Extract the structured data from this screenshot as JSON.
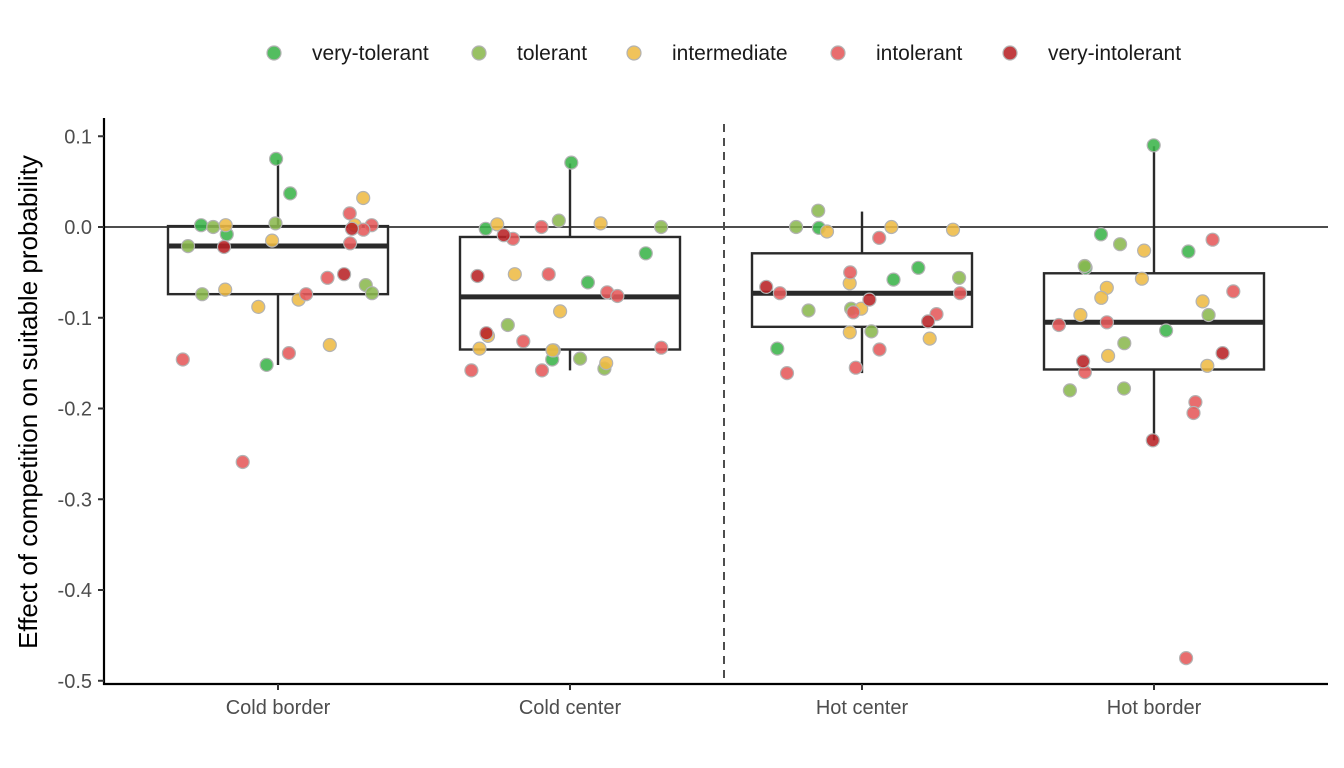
{
  "chart_data": {
    "type": "scatter",
    "subtype": "boxplot-with-jittered-points",
    "title": "",
    "xlabel": "",
    "ylabel": "Effect of competition on suitable probability",
    "ylim": [
      -0.5,
      0.12
    ],
    "yticks": [
      0.1,
      0.0,
      -0.1,
      -0.2,
      -0.3,
      -0.4,
      -0.5
    ],
    "ytick_labels": [
      "0.1",
      "0.0",
      "-0.1",
      "-0.2",
      "-0.3",
      "-0.4",
      "-0.5"
    ],
    "categories": [
      "Cold border",
      "Cold center",
      "Hot center",
      "Hot border"
    ],
    "grid": false,
    "legend_position": "top",
    "reference_line_y": 0.0,
    "divider_between": [
      "Cold center",
      "Hot center"
    ],
    "boxes": [
      {
        "category": "Cold border",
        "whisker_low": -0.152,
        "q1": -0.074,
        "median": -0.021,
        "q3": 0.001,
        "whisker_high": 0.074
      },
      {
        "category": "Cold center",
        "whisker_low": -0.158,
        "q1": -0.135,
        "median": -0.077,
        "q3": -0.011,
        "whisker_high": 0.07
      },
      {
        "category": "Hot center",
        "whisker_low": -0.161,
        "q1": -0.11,
        "median": -0.073,
        "q3": -0.029,
        "whisker_high": 0.017
      },
      {
        "category": "Hot border",
        "whisker_low": -0.235,
        "q1": -0.157,
        "median": -0.105,
        "q3": -0.051,
        "whisker_high": 0.089
      }
    ],
    "series": [
      {
        "name": "very-tolerant",
        "color": "#3bb44a",
        "points": [
          [
            "Cold border",
            0.075
          ],
          [
            "Cold border",
            0.037
          ],
          [
            "Cold border",
            0.002
          ],
          [
            "Cold border",
            -0.008
          ],
          [
            "Cold border",
            -0.152
          ],
          [
            "Cold center",
            0.071
          ],
          [
            "Cold center",
            -0.002
          ],
          [
            "Cold center",
            -0.029
          ],
          [
            "Cold center",
            -0.061
          ],
          [
            "Cold center",
            -0.146
          ],
          [
            "Hot center",
            -0.001
          ],
          [
            "Hot center",
            -0.045
          ],
          [
            "Hot center",
            -0.058
          ],
          [
            "Hot center",
            -0.134
          ],
          [
            "Hot border",
            0.09
          ],
          [
            "Hot border",
            -0.008
          ],
          [
            "Hot border",
            -0.027
          ],
          [
            "Hot border",
            -0.045
          ],
          [
            "Hot border",
            -0.114
          ]
        ]
      },
      {
        "name": "tolerant",
        "color": "#8bb84f",
        "points": [
          [
            "Cold border",
            0.004
          ],
          [
            "Cold border",
            0.0
          ],
          [
            "Cold border",
            -0.021
          ],
          [
            "Cold border",
            -0.064
          ],
          [
            "Cold border",
            -0.073
          ],
          [
            "Cold border",
            -0.074
          ],
          [
            "Cold center",
            0.007
          ],
          [
            "Cold center",
            0.0
          ],
          [
            "Cold center",
            -0.108
          ],
          [
            "Cold center",
            -0.136
          ],
          [
            "Cold center",
            -0.145
          ],
          [
            "Cold center",
            -0.156
          ],
          [
            "Hot center",
            0.018
          ],
          [
            "Hot center",
            0.0
          ],
          [
            "Hot center",
            -0.056
          ],
          [
            "Hot center",
            -0.09
          ],
          [
            "Hot center",
            -0.092
          ],
          [
            "Hot center",
            -0.115
          ],
          [
            "Hot border",
            -0.019
          ],
          [
            "Hot border",
            -0.043
          ],
          [
            "Hot border",
            -0.097
          ],
          [
            "Hot border",
            -0.128
          ],
          [
            "Hot border",
            -0.178
          ],
          [
            "Hot border",
            -0.18
          ]
        ]
      },
      {
        "name": "intermediate",
        "color": "#eebb44",
        "points": [
          [
            "Cold border",
            0.032
          ],
          [
            "Cold border",
            0.002
          ],
          [
            "Cold border",
            0.002
          ],
          [
            "Cold border",
            -0.015
          ],
          [
            "Cold border",
            -0.069
          ],
          [
            "Cold border",
            -0.08
          ],
          [
            "Cold border",
            -0.088
          ],
          [
            "Cold border",
            -0.13
          ],
          [
            "Cold center",
            0.004
          ],
          [
            "Cold center",
            0.003
          ],
          [
            "Cold center",
            -0.052
          ],
          [
            "Cold center",
            -0.093
          ],
          [
            "Cold center",
            -0.12
          ],
          [
            "Cold center",
            -0.134
          ],
          [
            "Cold center",
            -0.136
          ],
          [
            "Cold center",
            -0.15
          ],
          [
            "Hot center",
            0.0
          ],
          [
            "Hot center",
            -0.003
          ],
          [
            "Hot center",
            -0.005
          ],
          [
            "Hot center",
            -0.062
          ],
          [
            "Hot center",
            -0.09
          ],
          [
            "Hot center",
            -0.116
          ],
          [
            "Hot center",
            -0.123
          ],
          [
            "Hot border",
            -0.026
          ],
          [
            "Hot border",
            -0.057
          ],
          [
            "Hot border",
            -0.067
          ],
          [
            "Hot border",
            -0.078
          ],
          [
            "Hot border",
            -0.082
          ],
          [
            "Hot border",
            -0.097
          ],
          [
            "Hot border",
            -0.142
          ],
          [
            "Hot border",
            -0.153
          ]
        ]
      },
      {
        "name": "intolerant",
        "color": "#e5595a",
        "points": [
          [
            "Cold border",
            0.015
          ],
          [
            "Cold border",
            0.002
          ],
          [
            "Cold border",
            -0.003
          ],
          [
            "Cold border",
            -0.018
          ],
          [
            "Cold border",
            -0.056
          ],
          [
            "Cold border",
            -0.074
          ],
          [
            "Cold border",
            -0.139
          ],
          [
            "Cold border",
            -0.146
          ],
          [
            "Cold border",
            -0.259
          ],
          [
            "Cold center",
            0.0
          ],
          [
            "Cold center",
            -0.013
          ],
          [
            "Cold center",
            -0.052
          ],
          [
            "Cold center",
            -0.072
          ],
          [
            "Cold center",
            -0.076
          ],
          [
            "Cold center",
            -0.126
          ],
          [
            "Cold center",
            -0.133
          ],
          [
            "Cold center",
            -0.158
          ],
          [
            "Cold center",
            -0.158
          ],
          [
            "Hot center",
            -0.012
          ],
          [
            "Hot center",
            -0.05
          ],
          [
            "Hot center",
            -0.073
          ],
          [
            "Hot center",
            -0.073
          ],
          [
            "Hot center",
            -0.094
          ],
          [
            "Hot center",
            -0.096
          ],
          [
            "Hot center",
            -0.135
          ],
          [
            "Hot center",
            -0.155
          ],
          [
            "Hot center",
            -0.161
          ],
          [
            "Hot border",
            -0.014
          ],
          [
            "Hot border",
            -0.071
          ],
          [
            "Hot border",
            -0.105
          ],
          [
            "Hot border",
            -0.108
          ],
          [
            "Hot border",
            -0.16
          ],
          [
            "Hot border",
            -0.193
          ],
          [
            "Hot border",
            -0.205
          ],
          [
            "Hot border",
            -0.475
          ]
        ]
      },
      {
        "name": "very-intolerant",
        "color": "#b82226",
        "points": [
          [
            "Cold border",
            -0.002
          ],
          [
            "Cold border",
            -0.022
          ],
          [
            "Cold border",
            -0.052
          ],
          [
            "Cold center",
            -0.009
          ],
          [
            "Cold center",
            -0.054
          ],
          [
            "Cold center",
            -0.117
          ],
          [
            "Hot center",
            -0.066
          ],
          [
            "Hot center",
            -0.08
          ],
          [
            "Hot center",
            -0.104
          ],
          [
            "Hot border",
            -0.139
          ],
          [
            "Hot border",
            -0.148
          ],
          [
            "Hot border",
            -0.235
          ]
        ]
      }
    ]
  }
}
